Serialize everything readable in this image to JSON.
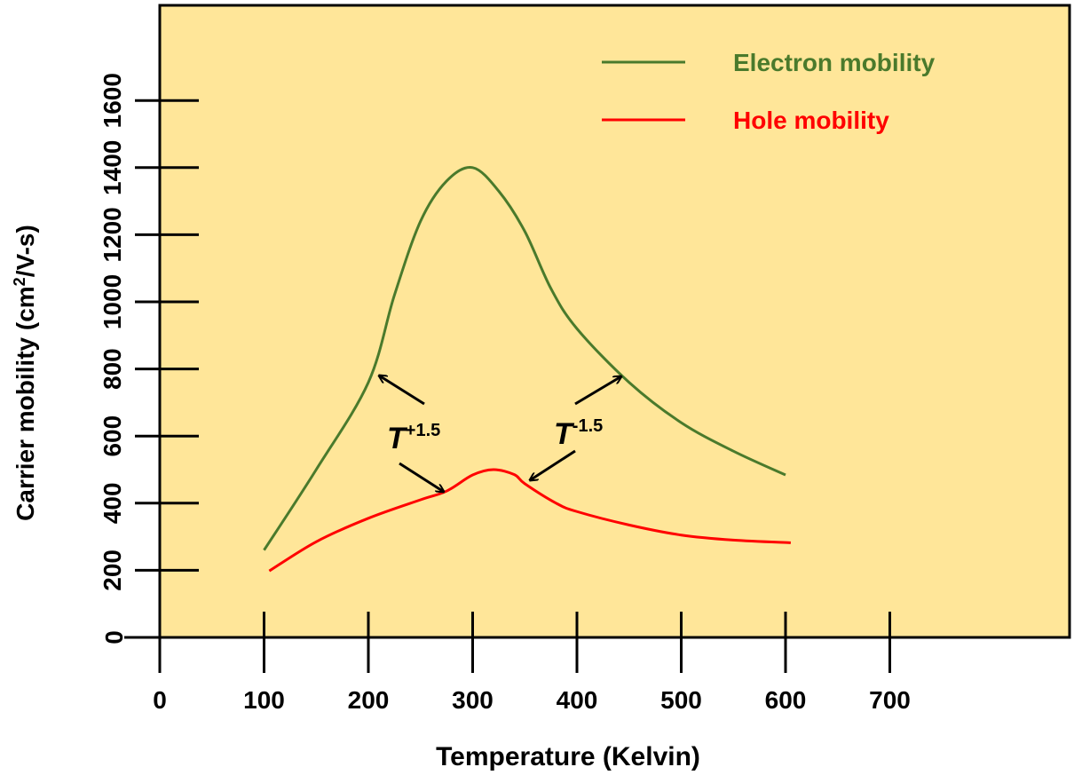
{
  "chart_data": {
    "type": "line",
    "title": "",
    "xlabel": "Temperature (Kelvin)",
    "ylabel": "Carrier mobility (cm",
    "ylabel_sup": "2",
    "ylabel_tail": "/V-s)",
    "xlim": [
      0,
      700
    ],
    "ylim": [
      0,
      1600
    ],
    "x_ticks": [
      0,
      100,
      200,
      300,
      400,
      500,
      600,
      700
    ],
    "x_tick_labels": [
      "0",
      "100",
      "200",
      "300",
      "400",
      "500",
      "600",
      "700"
    ],
    "y_ticks": [
      0,
      200,
      400,
      600,
      800,
      1000,
      1200,
      1400,
      1600
    ],
    "y_tick_labels": [
      "0",
      "200",
      "400",
      "600",
      "800",
      "1000",
      "1200",
      "1400",
      "1600"
    ],
    "grid": false,
    "legend_position": "top-right",
    "background": "#FFE699",
    "series": [
      {
        "name": "Electron mobility",
        "color": "#4A7A2C",
        "x": [
          100,
          150,
          200,
          225,
          250,
          275,
          300,
          325,
          350,
          375,
          400,
          450,
          500,
          550,
          600
        ],
        "y": [
          260,
          500,
          760,
          1020,
          1240,
          1360,
          1400,
          1330,
          1210,
          1040,
          920,
          760,
          640,
          555,
          484
        ]
      },
      {
        "name": "Hole mobility",
        "color": "#FF0000",
        "x": [
          105,
          150,
          200,
          250,
          275,
          300,
          320,
          340,
          350,
          380,
          400,
          450,
          500,
          550,
          605
        ],
        "y": [
          198,
          285,
          355,
          410,
          436,
          484,
          500,
          485,
          458,
          400,
          375,
          335,
          305,
          290,
          282
        ]
      }
    ],
    "annotations": [
      {
        "base": "T",
        "exponent": "+1.5",
        "points_to": [
          [
            205,
            780
          ],
          [
            275,
            430
          ]
        ]
      },
      {
        "base": "T",
        "exponent": "-1.5",
        "points_to": [
          [
            440,
            780
          ],
          [
            355,
            465
          ]
        ]
      }
    ]
  }
}
